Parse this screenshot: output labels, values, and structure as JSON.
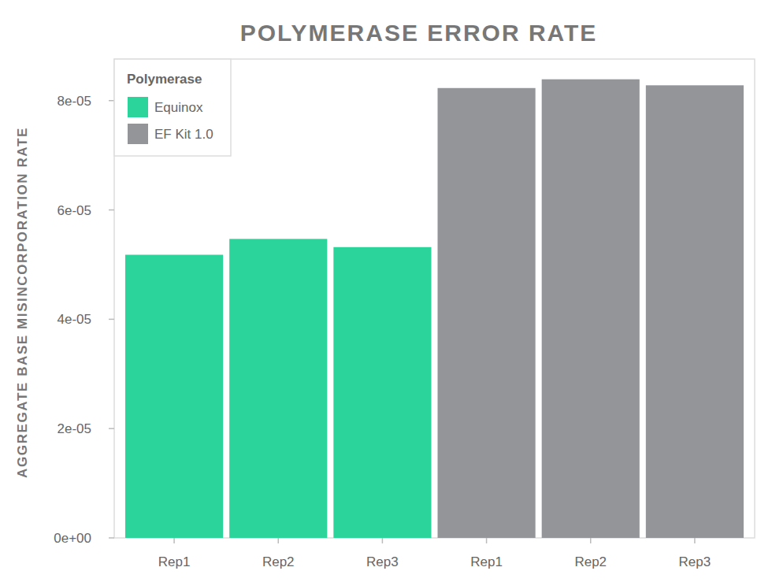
{
  "chart_data": {
    "type": "bar",
    "title": "POLYMERASE ERROR RATE",
    "y_label": "AGGREGATE BASE MISINCORPORATION RATE",
    "categories": [
      "Rep1",
      "Rep2",
      "Rep3",
      "Rep1",
      "Rep2",
      "Rep3"
    ],
    "series": [
      {
        "name": "Equinox",
        "color": "#2bd49b",
        "values": [
          5.18e-05,
          5.47e-05,
          5.32e-05,
          null,
          null,
          null
        ]
      },
      {
        "name": "EF Kit 1.0",
        "color": "#949599",
        "values": [
          null,
          null,
          null,
          8.23e-05,
          8.39e-05,
          8.28e-05
        ]
      }
    ],
    "ylim": [
      0,
      8.76e-05
    ],
    "yticks": [
      {
        "value": 0,
        "label": "0e+00"
      },
      {
        "value": 2e-05,
        "label": "2e-05"
      },
      {
        "value": 4e-05,
        "label": "4e-05"
      },
      {
        "value": 6e-05,
        "label": "6e-05"
      },
      {
        "value": 8e-05,
        "label": "8e-05"
      }
    ],
    "grid": false,
    "legend": "top-left",
    "legend_title": "Polymerase"
  }
}
